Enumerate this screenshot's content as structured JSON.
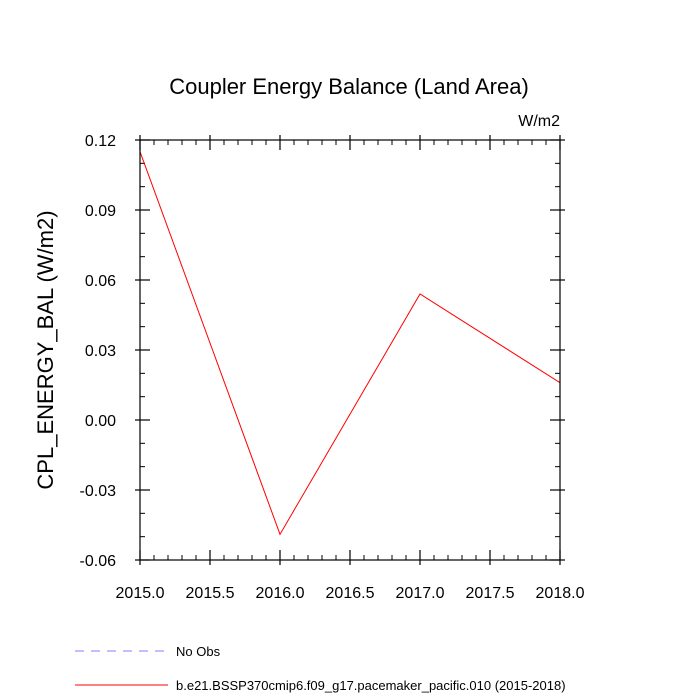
{
  "chart_data": {
    "type": "line",
    "title": "Coupler Energy Balance (Land Area)",
    "units_label": "W/m2",
    "ylabel": "CPL_ENERGY_BAL  (W/m2)",
    "xlabel": "",
    "xlim": [
      2015.0,
      2018.0
    ],
    "ylim": [
      -0.06,
      0.12
    ],
    "x_ticks": [
      2015.0,
      2015.5,
      2016.0,
      2016.5,
      2017.0,
      2017.5,
      2018.0
    ],
    "x_tick_labels": [
      "2015.0",
      "2015.5",
      "2016.0",
      "2016.5",
      "2017.0",
      "2017.5",
      "2018.0"
    ],
    "y_ticks": [
      -0.06,
      -0.03,
      0.0,
      0.03,
      0.06,
      0.09,
      0.12
    ],
    "y_tick_labels": [
      "-0.06",
      "-0.03",
      "0.00",
      "0.03",
      "0.06",
      "0.09",
      "0.12"
    ],
    "x_minor_step": 0.1,
    "y_minor_step": 0.01,
    "series": [
      {
        "name": "No Obs",
        "color": "#8080ff",
        "dash": true,
        "x": [],
        "values": []
      },
      {
        "name": "b.e21.BSSP370cmip6.f09_g17.pacemaker_pacific.010 (2015-2018)",
        "color": "#ff0000",
        "dash": false,
        "x": [
          2015.0,
          2016.0,
          2017.0,
          2018.0
        ],
        "values": [
          0.115,
          -0.049,
          0.054,
          0.016
        ]
      }
    ],
    "legend_position": "bottom-left"
  }
}
